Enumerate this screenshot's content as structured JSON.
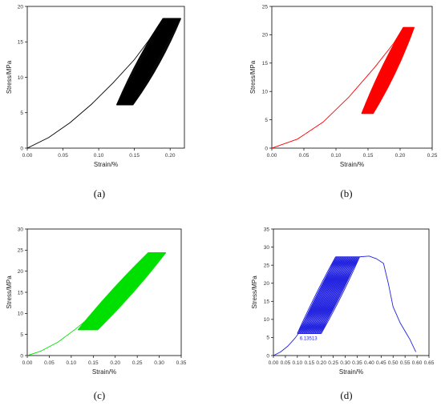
{
  "chart_data": [
    {
      "id": "a",
      "type": "line",
      "caption": "(a)",
      "color": "#000000",
      "xlabel": "Strain/%",
      "ylabel": "Stress/MPa",
      "xlim": [
        0,
        0.22
      ],
      "ylim": [
        0,
        20
      ],
      "xticks": [
        "0.00",
        "0.05",
        "0.10",
        "0.15",
        "0.20"
      ],
      "yticks": [
        "0",
        "5",
        "10",
        "15",
        "20"
      ],
      "xtick_values": [
        0,
        0.05,
        0.1,
        0.15,
        0.2
      ],
      "ytick_values": [
        0,
        5,
        10,
        15,
        20
      ],
      "loading_curve": [
        [
          0,
          0
        ],
        [
          0.03,
          1.5
        ],
        [
          0.06,
          3.6
        ],
        [
          0.09,
          6.2
        ],
        [
          0.12,
          9.2
        ],
        [
          0.15,
          12.5
        ],
        [
          0.17,
          15.2
        ],
        [
          0.19,
          18.3
        ]
      ],
      "cycle_band": {
        "min_stress": 6.1,
        "max_stress": 18.3,
        "lower_strain_start": [
          0.125,
          0.148
        ],
        "upper_strain_start": [
          0.19,
          0.215
        ],
        "spread_right": 0.035,
        "count": 26
      }
    },
    {
      "id": "b",
      "type": "line",
      "caption": "(b)",
      "color": "#ff0000",
      "xlabel": "Strain/%",
      "ylabel": "Stress/MPa",
      "xlim": [
        0,
        0.25
      ],
      "ylim": [
        0,
        25
      ],
      "xticks": [
        "0.00",
        "0.05",
        "0.10",
        "0.15",
        "0.20",
        "0.25"
      ],
      "yticks": [
        "0",
        "5",
        "10",
        "15",
        "20",
        "25"
      ],
      "xtick_values": [
        0,
        0.05,
        0.1,
        0.15,
        0.2,
        0.25
      ],
      "ytick_values": [
        0,
        5,
        10,
        15,
        20,
        25
      ],
      "loading_curve": [
        [
          0,
          0
        ],
        [
          0.04,
          1.6
        ],
        [
          0.08,
          4.6
        ],
        [
          0.12,
          9.0
        ],
        [
          0.16,
          14.2
        ],
        [
          0.19,
          18.5
        ],
        [
          0.205,
          21.3
        ]
      ],
      "cycle_band": {
        "min_stress": 6.1,
        "max_stress": 21.3,
        "lower_strain_start": [
          0.14,
          0.158
        ],
        "upper_strain_start": [
          0.205,
          0.222
        ],
        "spread_right": 0.02,
        "count": 22
      }
    },
    {
      "id": "c",
      "type": "line",
      "caption": "(c)",
      "color": "#00e000",
      "xlabel": "Strain/%",
      "ylabel": "Stress/MPa",
      "xlim": [
        0,
        0.35
      ],
      "ylim": [
        0,
        30
      ],
      "xticks": [
        "0.00",
        "0.05",
        "0.10",
        "0.15",
        "0.20",
        "0.25",
        "0.30",
        "0.35"
      ],
      "yticks": [
        "0",
        "5",
        "10",
        "15",
        "20",
        "25",
        "30"
      ],
      "xtick_values": [
        0,
        0.05,
        0.1,
        0.15,
        0.2,
        0.25,
        0.3,
        0.35
      ],
      "ytick_values": [
        0,
        5,
        10,
        15,
        20,
        25,
        30
      ],
      "loading_curve": [
        [
          0,
          0
        ],
        [
          0.03,
          1.0
        ],
        [
          0.07,
          3.2
        ],
        [
          0.11,
          6.3
        ],
        [
          0.16,
          10.6
        ],
        [
          0.21,
          15.4
        ],
        [
          0.25,
          19.7
        ],
        [
          0.275,
          23.0
        ],
        [
          0.28,
          24.4
        ]
      ],
      "cycle_band": {
        "min_stress": 6.1,
        "max_stress": 24.4,
        "lower_strain_start": [
          0.115,
          0.16
        ],
        "upper_strain_start": [
          0.275,
          0.315
        ],
        "spread_right": 0.04,
        "count": 28
      }
    },
    {
      "id": "d",
      "type": "line",
      "caption": "(d)",
      "color": "#2323e0",
      "xlabel": "Strain/%",
      "ylabel": "Stress/MPa",
      "xlim": [
        0,
        0.65
      ],
      "ylim": [
        0,
        35
      ],
      "xticks": [
        "0.00",
        "0.05",
        "0.10",
        "0.15",
        "0.20",
        "0.25",
        "0.30",
        "0.35",
        "0.40",
        "0.45",
        "0.50",
        "0.55",
        "0.60",
        "0.65"
      ],
      "yticks": [
        "0",
        "5",
        "10",
        "15",
        "20",
        "25",
        "30",
        "35"
      ],
      "xtick_values": [
        0,
        0.05,
        0.1,
        0.15,
        0.2,
        0.25,
        0.3,
        0.35,
        0.4,
        0.45,
        0.5,
        0.55,
        0.6,
        0.65
      ],
      "ytick_values": [
        0,
        5,
        10,
        15,
        20,
        25,
        30,
        35
      ],
      "loading_curve": [
        [
          0,
          0
        ],
        [
          0.03,
          1.0
        ],
        [
          0.06,
          2.6
        ],
        [
          0.09,
          4.8
        ],
        [
          0.11,
          6.6
        ]
      ],
      "post_peak": [
        [
          0.36,
          27.3
        ],
        [
          0.4,
          27.5
        ],
        [
          0.43,
          26.8
        ],
        [
          0.46,
          25.5
        ],
        [
          0.48,
          20.0
        ],
        [
          0.5,
          13.5
        ],
        [
          0.53,
          9.0
        ],
        [
          0.57,
          4.5
        ],
        [
          0.595,
          1.0
        ]
      ],
      "cycle_band": {
        "min_stress": 6.1,
        "max_stress": 27.3,
        "lower_strain_start": [
          0.1,
          0.2
        ],
        "upper_strain_start": [
          0.26,
          0.36
        ],
        "spread_right": 0.0,
        "count": 20
      },
      "annotation": "6.13513"
    }
  ]
}
